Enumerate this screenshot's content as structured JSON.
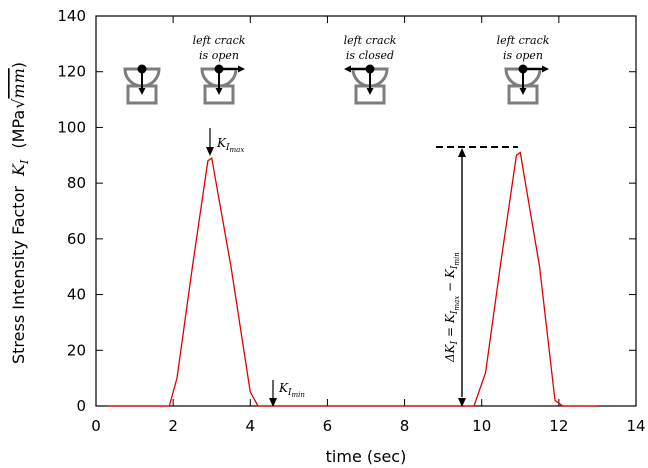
{
  "chart_data": {
    "type": "line",
    "xlabel": "time (sec)",
    "ylabel_text": "Stress Intensity Factor",
    "ylabel_symbol": "K",
    "ylabel_subscript": "I",
    "ylabel_unit": "(MPa",
    "ylabel_unit_root": "mm",
    "ylabel_unit_close": ")",
    "xlim": [
      0,
      14
    ],
    "ylim": [
      0,
      140
    ],
    "xticks": [
      "0",
      "2",
      "4",
      "6",
      "8",
      "10",
      "12",
      "14"
    ],
    "yticks": [
      "0",
      "20",
      "40",
      "60",
      "80",
      "100",
      "120",
      "140"
    ],
    "series_color": "#e00000",
    "x": [
      0.3,
      1.9,
      2.1,
      2.5,
      2.9,
      3.0,
      3.5,
      4.0,
      4.2,
      4.5,
      9.8,
      10.1,
      10.5,
      10.9,
      11.0,
      11.5,
      11.9,
      12.1,
      13.0
    ],
    "y": [
      0,
      0,
      10,
      50,
      88,
      89,
      50,
      5,
      0,
      0,
      0,
      12,
      52,
      90,
      91,
      50,
      2,
      0,
      0
    ],
    "annotations": {
      "kmax": {
        "symbol": "K",
        "sub": "I",
        "subsub": "max"
      },
      "kmin": {
        "symbol": "K",
        "sub": "I",
        "subsub": "min"
      },
      "delta": {
        "text": "ΔK",
        "sub": "I",
        "eq": " = K",
        "sub2": "I",
        "subsub2": "max",
        "minus": " − K",
        "sub3": "I",
        "subsub3": "min"
      },
      "states": [
        {
          "line1": "left crack",
          "line2": "is open"
        },
        {
          "line1": "left crack",
          "line2": "is closed"
        },
        {
          "line1": "left crack",
          "line2": "is open"
        }
      ]
    }
  }
}
